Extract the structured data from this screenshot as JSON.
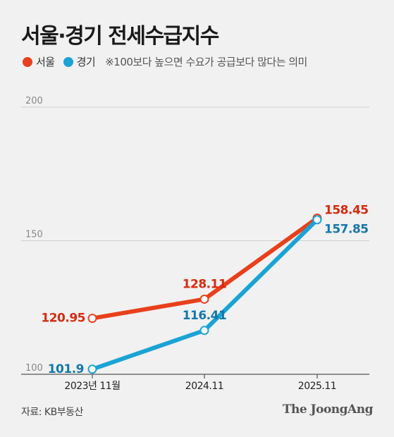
{
  "title": "서울·경기 전세수급지수",
  "legend": {
    "note": "※100보다 높으면 수요가 공급보다 많다는 의미"
  },
  "source": "자료: KB부동산",
  "brand": "The JoongAng",
  "colors": {
    "seoul": "#e8401c",
    "gyeonggi": "#1aa3d4"
  },
  "chart_data": {
    "type": "line",
    "title": "서울·경기 전세수급지수",
    "categories": [
      "2023년 11월",
      "2024.11",
      "2025.11"
    ],
    "yticks": [
      "100",
      "150",
      "200"
    ],
    "ylim": [
      100,
      200
    ],
    "grid": true,
    "legend_placement": "top-left",
    "series": [
      {
        "name": "서울",
        "color": "#e8401c",
        "values": [
          120.95,
          128.11,
          158.45
        ],
        "labels": [
          "120.95",
          "128.11",
          "158.45"
        ]
      },
      {
        "name": "경기",
        "color": "#1aa3d4",
        "values": [
          101.9,
          116.41,
          157.85
        ],
        "labels": [
          "101.9",
          "116.41",
          "157.85"
        ]
      }
    ]
  }
}
